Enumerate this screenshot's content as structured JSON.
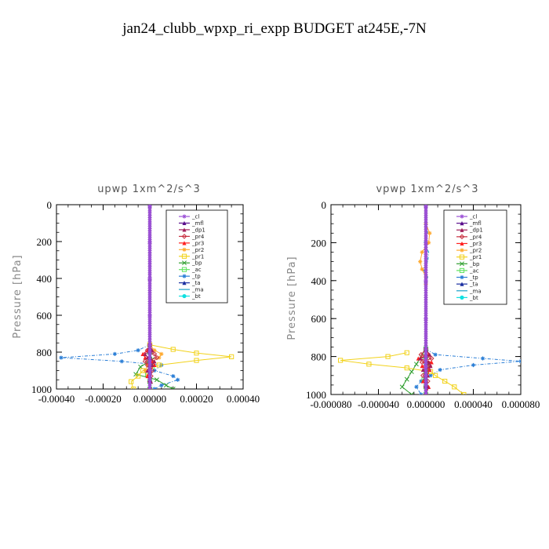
{
  "title": "jan24_clubb_wpxp_ri_expp  BUDGET at245E,-7N",
  "legend_entries": [
    "_cl",
    "_mfl",
    "_dp1",
    "_pr4",
    "_pr3",
    "_pr2",
    "_pr1",
    "_bp",
    "_ac",
    "_tp",
    "_ta",
    "_ma",
    "_bt"
  ],
  "series_colors": {
    "_cl": "#9b4fd6",
    "_mfl": "#5a0f8c",
    "_dp1": "#a0205a",
    "_pr4": "#c83040",
    "_pr3": "#ff2020",
    "_pr2": "#ffaa30",
    "_pr1": "#f2d21a",
    "_bp": "#2e9e2e",
    "_ac": "#5fe35f",
    "_tp": "#2a7ed6",
    "_ta": "#1a2ea0",
    "_ma": "#1aa0c8",
    "_bt": "#10e0e0"
  },
  "chart_data": [
    {
      "type": "line",
      "title": "upwp   1xm^2/s^3",
      "ylabel": "Pressure [hPa]",
      "xlabel": "",
      "xlim": [
        -0.0004,
        0.0004
      ],
      "ylim": [
        1000,
        0
      ],
      "x_ticks": [
        "-0.00040",
        "-0.00020",
        "0.00000",
        "0.00020",
        "0.00040"
      ],
      "y_ticks": [
        "0",
        "200",
        "400",
        "600",
        "800",
        "1000"
      ],
      "legend": "upper-right",
      "series": [
        {
          "name": "_cl",
          "pressure": [
            5,
            200,
            400,
            600,
            760,
            800,
            850,
            900,
            950,
            1000
          ],
          "values": [
            0,
            0,
            0,
            0,
            0,
            0,
            0,
            0,
            0,
            0
          ]
        },
        {
          "name": "_mfl",
          "pressure": [
            5,
            200,
            400,
            600,
            760,
            800,
            850,
            900,
            950,
            1000
          ],
          "values": [
            0,
            0,
            0,
            0,
            0,
            0,
            0,
            0,
            0,
            0
          ]
        },
        {
          "name": "_dp1",
          "pressure": [
            760,
            790,
            810,
            830,
            850,
            870,
            900,
            930,
            960,
            1000
          ],
          "values": [
            0,
            1e-05,
            -2e-05,
            -1e-05,
            2e-05,
            1e-05,
            -1e-05,
            0,
            5e-06,
            0
          ]
        },
        {
          "name": "_pr4",
          "pressure": [
            760,
            790,
            810,
            830,
            850,
            870,
            900,
            930,
            960,
            1000
          ],
          "values": [
            0,
            -1e-05,
            2e-05,
            3e-05,
            -2e-05,
            -1e-05,
            1e-05,
            5e-06,
            0,
            0
          ]
        },
        {
          "name": "_pr3",
          "pressure": [
            760,
            790,
            810,
            830,
            850,
            870,
            900,
            930,
            960,
            1000
          ],
          "values": [
            0,
            -1e-05,
            -3e-05,
            -2e-05,
            1e-05,
            2e-05,
            0,
            -1e-05,
            0,
            0
          ]
        },
        {
          "name": "_pr2",
          "pressure": [
            760,
            790,
            810,
            830,
            850,
            870,
            900,
            930,
            960,
            1000
          ],
          "values": [
            0,
            2e-05,
            5e-05,
            4e-05,
            1e-05,
            -1e-05,
            -2e-05,
            -1e-05,
            0,
            0
          ]
        },
        {
          "name": "_pr1",
          "pressure": [
            760,
            785,
            805,
            825,
            845,
            870,
            900,
            930,
            960,
            1000
          ],
          "values": [
            0,
            0.0001,
            0.0002,
            0.00035,
            0.0002,
            4e-05,
            -3e-05,
            -5e-05,
            -8e-05,
            -7e-05
          ]
        },
        {
          "name": "_bp",
          "pressure": [
            760,
            800,
            840,
            880,
            920,
            950,
            980,
            1000
          ],
          "values": [
            0,
            0,
            1e-05,
            -4e-05,
            -6e-05,
            3e-05,
            7e-05,
            0.0001
          ]
        },
        {
          "name": "_ac",
          "pressure": [
            760,
            800,
            840,
            880,
            920,
            960,
            1000
          ],
          "values": [
            0,
            0,
            0,
            1e-05,
            -1e-05,
            0,
            0
          ]
        },
        {
          "name": "_tp",
          "pressure": [
            760,
            790,
            810,
            830,
            850,
            870,
            900,
            930,
            950,
            980,
            1000
          ],
          "values": [
            0,
            -5e-05,
            -0.00015,
            -0.00038,
            -0.00012,
            5e-05,
            2e-05,
            0.0001,
            0.00012,
            5e-05,
            2e-05
          ]
        },
        {
          "name": "_ta",
          "pressure": [
            760,
            800,
            840,
            880,
            920,
            960,
            1000
          ],
          "values": [
            0,
            0,
            5e-06,
            0,
            -5e-06,
            0,
            0
          ]
        },
        {
          "name": "_ma",
          "pressure": [
            760,
            800,
            840,
            880,
            920,
            960,
            1000
          ],
          "values": [
            0,
            0,
            0,
            0,
            0,
            0,
            0
          ]
        },
        {
          "name": "_bt",
          "pressure": [
            760,
            800,
            840,
            880,
            920,
            960,
            1000
          ],
          "values": [
            0,
            0,
            0,
            0,
            0,
            0,
            0
          ]
        }
      ]
    },
    {
      "type": "line",
      "title": "vpwp   1xm^2/s^3",
      "ylabel": "Pressure [hPa]",
      "xlabel": "",
      "xlim": [
        -0.0001,
        0.0001
      ],
      "ylim": [
        1000,
        0
      ],
      "x_ticks": [
        "-0.000080",
        "-0.000040",
        "0.000000",
        "0.000040",
        "0.000080"
      ],
      "y_ticks": [
        "0",
        "200",
        "400",
        "600",
        "800",
        "1000"
      ],
      "legend": "upper-right",
      "series": [
        {
          "name": "_cl",
          "pressure": [
            5,
            200,
            400,
            600,
            760,
            800,
            850,
            900,
            950,
            1000
          ],
          "values": [
            0,
            0,
            0,
            0,
            0,
            0,
            0,
            0,
            0,
            0
          ]
        },
        {
          "name": "_mfl",
          "pressure": [
            5,
            200,
            400,
            600,
            760,
            800,
            850,
            900,
            950,
            1000
          ],
          "values": [
            0,
            0,
            0,
            0,
            0,
            0,
            0,
            0,
            0,
            0
          ]
        },
        {
          "name": "_dp1",
          "pressure": [
            760,
            790,
            810,
            830,
            850,
            870,
            900,
            930,
            960,
            1000
          ],
          "values": [
            0,
            4e-06,
            -6e-06,
            3e-06,
            5e-06,
            -3e-06,
            2e-06,
            0,
            2e-06,
            0
          ]
        },
        {
          "name": "_pr4",
          "pressure": [
            760,
            790,
            810,
            830,
            850,
            870,
            900,
            930,
            960,
            1000
          ],
          "values": [
            0,
            -5e-06,
            6e-06,
            -4e-06,
            4e-06,
            3e-06,
            -3e-06,
            2e-06,
            0,
            0
          ]
        },
        {
          "name": "_pr3",
          "pressure": [
            760,
            790,
            810,
            830,
            850,
            870,
            900,
            930,
            960,
            1000
          ],
          "values": [
            0,
            3e-06,
            -8e-06,
            6e-06,
            -4e-06,
            4e-06,
            2e-06,
            -3e-06,
            3e-06,
            0
          ]
        },
        {
          "name": "_pr2",
          "pressure": [
            100,
            150,
            200,
            250,
            300,
            340,
            380,
            420
          ],
          "values": [
            0,
            4e-06,
            3e-06,
            -4e-06,
            -6e-06,
            -4e-06,
            0,
            0
          ]
        },
        {
          "name": "_pr1",
          "pressure": [
            780,
            800,
            820,
            840,
            860,
            880,
            900,
            930,
            960,
            1000
          ],
          "values": [
            -2e-05,
            -4e-05,
            -9e-05,
            -6e-05,
            -2e-05,
            5e-06,
            1e-05,
            2e-05,
            3e-05,
            4e-05
          ]
        },
        {
          "name": "_bp",
          "pressure": [
            760,
            800,
            840,
            880,
            920,
            960,
            1000
          ],
          "values": [
            0,
            -5e-06,
            -1e-05,
            -1.5e-05,
            -2e-05,
            -2.5e-05,
            -1.5e-05
          ]
        },
        {
          "name": "_ac",
          "pressure": [
            760,
            800,
            840,
            880,
            920,
            960,
            1000
          ],
          "values": [
            0,
            0,
            2e-06,
            0,
            -2e-06,
            0,
            0
          ]
        },
        {
          "name": "_tp",
          "pressure": [
            760,
            790,
            810,
            825,
            845,
            870,
            900,
            930,
            960,
            1000
          ],
          "values": [
            0,
            1e-05,
            6e-05,
            0.0001,
            5e-05,
            1.5e-05,
            5e-06,
            -5e-06,
            -1e-05,
            -5e-06
          ]
        },
        {
          "name": "_ta",
          "pressure": [
            760,
            800,
            840,
            880,
            920,
            960,
            1000
          ],
          "values": [
            0,
            0,
            2e-06,
            0,
            -2e-06,
            0,
            0
          ]
        },
        {
          "name": "_ma",
          "pressure": [
            100,
            150,
            200,
            250,
            300,
            340,
            380,
            420,
            500,
            600,
            760
          ],
          "values": [
            0,
            2e-06,
            -2e-06,
            3e-06,
            2e-06,
            -3e-06,
            2e-06,
            0,
            0,
            0,
            0
          ]
        },
        {
          "name": "_bt",
          "pressure": [
            760,
            800,
            840,
            880,
            920,
            960,
            1000
          ],
          "values": [
            0,
            0,
            0,
            0,
            0,
            0,
            0
          ]
        }
      ]
    }
  ]
}
